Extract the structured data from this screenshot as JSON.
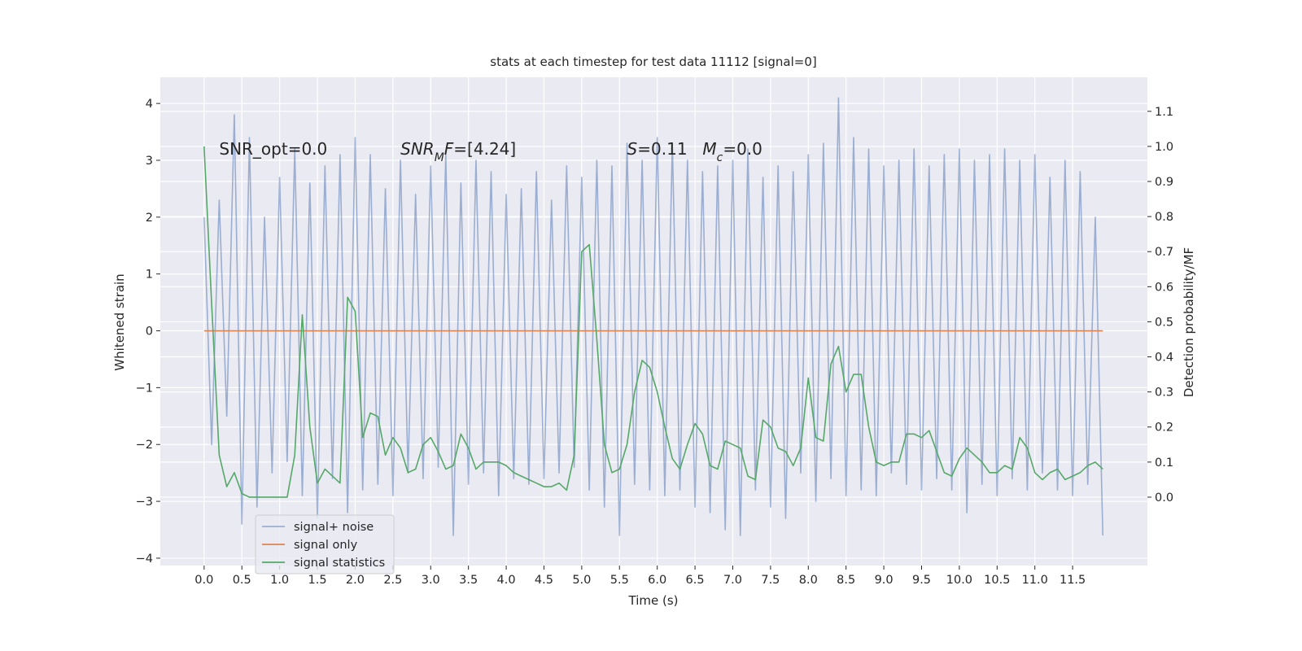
{
  "chart_data": {
    "type": "line",
    "title": "stats at each timestep for test data 11112 [signal=0]",
    "xlabel": "Time (s)",
    "ylabel": "Whitened strain",
    "y2label": "Detection probability/MF",
    "x": [
      0.0,
      0.1,
      0.2,
      0.3,
      0.4,
      0.5,
      0.6,
      0.7,
      0.8,
      0.9,
      1.0,
      1.1,
      1.2,
      1.3,
      1.4,
      1.5,
      1.6,
      1.7,
      1.8,
      1.9,
      2.0,
      2.1,
      2.2,
      2.3,
      2.4,
      2.5,
      2.6,
      2.7,
      2.8,
      2.9,
      3.0,
      3.1,
      3.2,
      3.3,
      3.4,
      3.5,
      3.6,
      3.7,
      3.8,
      3.9,
      4.0,
      4.1,
      4.2,
      4.3,
      4.4,
      4.5,
      4.6,
      4.7,
      4.8,
      4.9,
      5.0,
      5.1,
      5.2,
      5.3,
      5.4,
      5.5,
      5.6,
      5.7,
      5.8,
      5.9,
      6.0,
      6.1,
      6.2,
      6.3,
      6.4,
      6.5,
      6.6,
      6.7,
      6.8,
      6.9,
      7.0,
      7.1,
      7.2,
      7.3,
      7.4,
      7.5,
      7.6,
      7.7,
      7.8,
      7.9,
      8.0,
      8.1,
      8.2,
      8.3,
      8.4,
      8.5,
      8.6,
      8.7,
      8.8,
      8.9,
      9.0,
      9.1,
      9.2,
      9.3,
      9.4,
      9.5,
      9.6,
      9.7,
      9.8,
      9.9,
      10.0,
      10.1,
      10.2,
      10.3,
      10.4,
      10.5,
      10.6,
      10.7,
      10.8,
      10.9,
      11.0,
      11.1,
      11.2,
      11.3,
      11.4,
      11.5,
      11.6,
      11.7,
      11.8,
      11.9
    ],
    "series": [
      {
        "name": "signal+ noise",
        "color": "#4c72b0",
        "opacity": 0.5,
        "values": [
          2.0,
          -2.0,
          2.3,
          -1.5,
          3.8,
          -3.4,
          3.4,
          -3.1,
          2.0,
          -2.5,
          2.7,
          -2.3,
          3.2,
          -2.9,
          2.6,
          -3.3,
          2.9,
          -2.6,
          3.1,
          -3.2,
          3.4,
          -2.8,
          3.1,
          -2.7,
          2.5,
          -2.9,
          3.0,
          -2.5,
          2.4,
          -2.6,
          2.9,
          -2.4,
          3.1,
          -3.6,
          2.6,
          -2.7,
          3.0,
          -2.5,
          2.8,
          -2.9,
          2.4,
          -2.6,
          2.5,
          -2.7,
          2.8,
          -2.6,
          2.3,
          -2.5,
          2.9,
          -2.4,
          2.7,
          -2.8,
          3.0,
          -3.1,
          2.9,
          -3.6,
          3.3,
          -2.7,
          3.0,
          -2.8,
          3.4,
          -2.9,
          3.3,
          -2.8,
          3.0,
          -3.1,
          2.8,
          -3.2,
          2.9,
          -3.5,
          3.0,
          -3.6,
          3.2,
          -2.8,
          2.7,
          -3.1,
          2.9,
          -3.3,
          2.8,
          -2.5,
          3.1,
          -3.0,
          3.3,
          -2.6,
          4.1,
          -2.9,
          3.4,
          -2.8,
          3.2,
          -2.9,
          2.9,
          -2.5,
          3.0,
          -2.7,
          3.2,
          -2.8,
          2.9,
          -2.6,
          3.1,
          -2.8,
          3.2,
          -3.2,
          3.0,
          -2.7,
          3.1,
          -2.9,
          3.2,
          -2.6,
          3.0,
          -2.8,
          3.1,
          -2.5,
          2.7,
          -2.8,
          3.0,
          -2.9,
          2.8,
          -2.7,
          2.0,
          -3.6
        ]
      },
      {
        "name": "signal only",
        "color": "#dd8452",
        "opacity": 1,
        "values": [
          0,
          0,
          0,
          0,
          0,
          0,
          0,
          0,
          0,
          0,
          0,
          0,
          0,
          0,
          0,
          0,
          0,
          0,
          0,
          0,
          0,
          0,
          0,
          0,
          0,
          0,
          0,
          0,
          0,
          0,
          0,
          0,
          0,
          0,
          0,
          0,
          0,
          0,
          0,
          0,
          0,
          0,
          0,
          0,
          0,
          0,
          0,
          0,
          0,
          0,
          0,
          0,
          0,
          0,
          0,
          0,
          0,
          0,
          0,
          0,
          0,
          0,
          0,
          0,
          0,
          0,
          0,
          0,
          0,
          0,
          0,
          0,
          0,
          0,
          0,
          0,
          0,
          0,
          0,
          0,
          0,
          0,
          0,
          0,
          0,
          0,
          0,
          0,
          0,
          0,
          0,
          0,
          0,
          0,
          0,
          0,
          0,
          0,
          0,
          0,
          0,
          0,
          0,
          0,
          0,
          0,
          0,
          0,
          0,
          0,
          0,
          0,
          0,
          0,
          0,
          0,
          0,
          0,
          0,
          0
        ]
      },
      {
        "name": "signal statistics",
        "color": "#55a868",
        "opacity": 1,
        "axis": "y2",
        "values": [
          1.0,
          0.55,
          0.12,
          0.03,
          0.07,
          0.01,
          0.0,
          0.0,
          0.0,
          0.0,
          0.0,
          0.0,
          0.12,
          0.52,
          0.2,
          0.04,
          0.08,
          0.06,
          0.04,
          0.57,
          0.53,
          0.17,
          0.24,
          0.23,
          0.12,
          0.17,
          0.14,
          0.07,
          0.08,
          0.15,
          0.17,
          0.13,
          0.08,
          0.09,
          0.18,
          0.14,
          0.08,
          0.1,
          0.1,
          0.1,
          0.09,
          0.07,
          0.06,
          0.05,
          0.04,
          0.03,
          0.03,
          0.04,
          0.02,
          0.12,
          0.7,
          0.72,
          0.45,
          0.15,
          0.07,
          0.08,
          0.15,
          0.3,
          0.39,
          0.37,
          0.3,
          0.2,
          0.11,
          0.08,
          0.15,
          0.21,
          0.18,
          0.09,
          0.08,
          0.16,
          0.15,
          0.14,
          0.06,
          0.05,
          0.22,
          0.2,
          0.14,
          0.13,
          0.09,
          0.14,
          0.34,
          0.17,
          0.16,
          0.38,
          0.43,
          0.3,
          0.35,
          0.35,
          0.2,
          0.1,
          0.09,
          0.1,
          0.1,
          0.18,
          0.18,
          0.17,
          0.19,
          0.13,
          0.07,
          0.06,
          0.11,
          0.14,
          0.12,
          0.1,
          0.07,
          0.07,
          0.09,
          0.08,
          0.17,
          0.14,
          0.07,
          0.05,
          0.07,
          0.08,
          0.05,
          0.06,
          0.07,
          0.09,
          0.1,
          0.08
        ]
      }
    ],
    "xlim": [
      -0.58,
      12.49
    ],
    "ylim": [
      -4.13,
      4.46
    ],
    "y2lim": [
      -0.195,
      1.197
    ],
    "xticks": [
      {
        "value": 0,
        "label": "0.0"
      },
      0.5,
      {
        "value": 1,
        "label": "1.0"
      },
      1.5,
      {
        "value": 2,
        "label": "2.0"
      },
      2.5,
      {
        "value": 3,
        "label": "3.0"
      },
      3.5,
      {
        "value": 4,
        "label": "4.0"
      },
      4.5,
      {
        "value": 5,
        "label": "5.0"
      },
      5.5,
      {
        "value": 6,
        "label": "6.0"
      },
      6.5,
      {
        "value": 7,
        "label": "7.0"
      },
      7.5,
      {
        "value": 8,
        "label": "8.0"
      },
      8.5,
      {
        "value": 9,
        "label": "9.0"
      },
      9.5,
      {
        "value": 10,
        "label": "10.0"
      },
      10.5,
      {
        "value": 11,
        "label": "11.0"
      },
      11.5
    ],
    "yticks": [
      {
        "value": -4,
        "label": "−4"
      },
      {
        "value": -3,
        "label": "−3"
      },
      {
        "value": -2,
        "label": "−2"
      },
      {
        "value": -1,
        "label": "−1"
      },
      0,
      1,
      2,
      3,
      4
    ],
    "y2ticks": [
      {
        "value": 0,
        "label": "0.0"
      },
      0.1,
      0.2,
      0.3,
      0.4,
      0.5,
      0.6,
      0.7,
      0.8,
      0.9,
      {
        "value": 1,
        "label": "1.0"
      },
      1.1
    ],
    "grid": true,
    "legend": "lower left",
    "annotations": [
      [
        {
          "text": "SNR_opt=0.0"
        }
      ],
      [
        {
          "text": "SNR",
          "italic": true
        },
        {
          "text": "M",
          "italic": true,
          "sub": true
        },
        {
          "text": "F",
          "italic": true
        },
        {
          "text": "=[4.24]"
        }
      ],
      [
        {
          "text": "S",
          "italic": true
        },
        {
          "text": "=0.11"
        }
      ],
      [
        {
          "text": "M",
          "italic": true
        },
        {
          "text": "c",
          "italic": true,
          "sub": true
        },
        {
          "text": "=0.0"
        }
      ]
    ]
  }
}
